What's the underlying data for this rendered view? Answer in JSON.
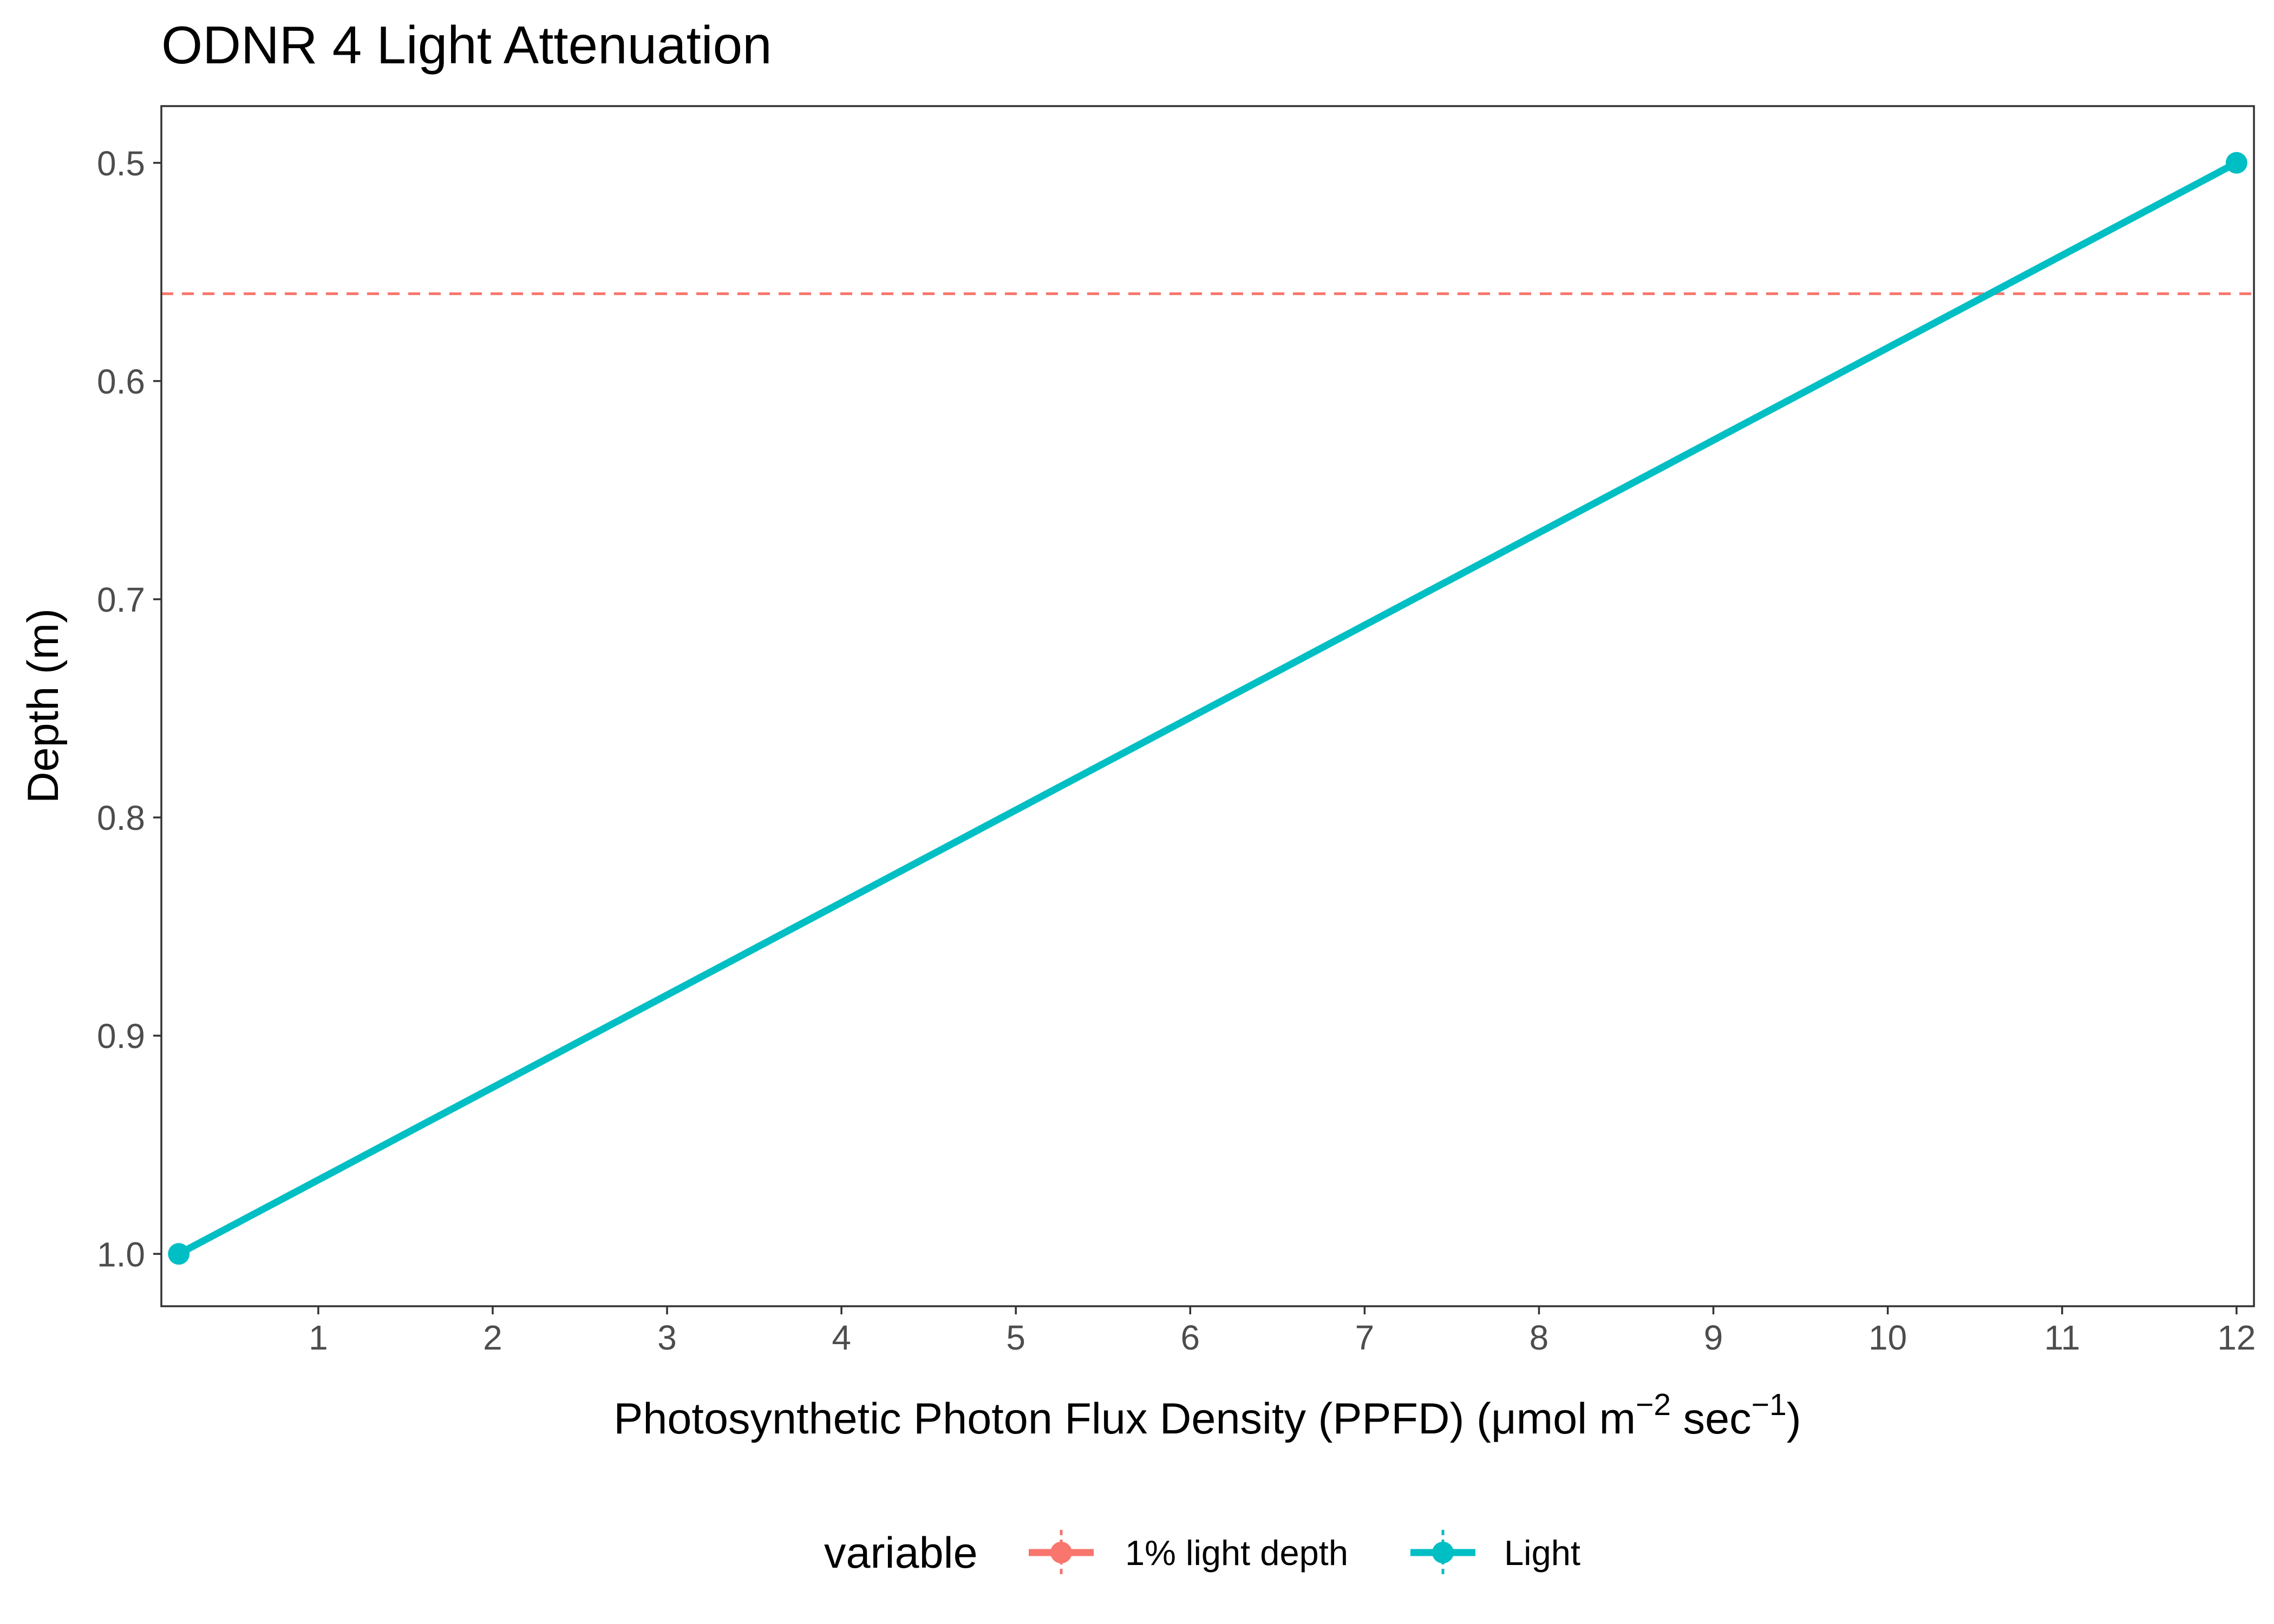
{
  "chart_data": {
    "type": "line",
    "title": "ODNR 4 Light Attenuation",
    "xlabel": {
      "main": "Photosynthetic Photon Flux Density (PPFD) (μmol m",
      "sup1": "−2",
      "mid": " sec",
      "sup2": "−1",
      "end": ")"
    },
    "ylabel": "Depth (m)",
    "xlim": [
      0.1,
      12.1
    ],
    "ylim": [
      0.474,
      1.024
    ],
    "y_reversed": true,
    "x_ticks": [
      1,
      2,
      3,
      4,
      5,
      6,
      7,
      8,
      9,
      10,
      11,
      12
    ],
    "x_tick_labels": [
      "1",
      "2",
      "3",
      "4",
      "5",
      "6",
      "7",
      "8",
      "9",
      "10",
      "11",
      "12"
    ],
    "y_ticks": [
      0.5,
      0.6,
      0.7,
      0.8,
      0.9,
      1.0
    ],
    "y_tick_labels": [
      "0.5",
      "0.6",
      "0.7",
      "0.8",
      "0.9",
      "1.0"
    ],
    "grid": false,
    "series": [
      {
        "name": "Light",
        "color": "#00BFC4",
        "style": "solid-line-with-points",
        "points": [
          {
            "x": 0.2,
            "y": 1.0
          },
          {
            "x": 12.0,
            "y": 0.5
          }
        ]
      },
      {
        "name": "1% light depth",
        "color": "#F8766D",
        "style": "dashed-horizontal-line",
        "y": 0.56
      }
    ],
    "legend": {
      "title": "variable",
      "position": "bottom",
      "entries": [
        "1% light depth",
        "Light"
      ]
    }
  }
}
